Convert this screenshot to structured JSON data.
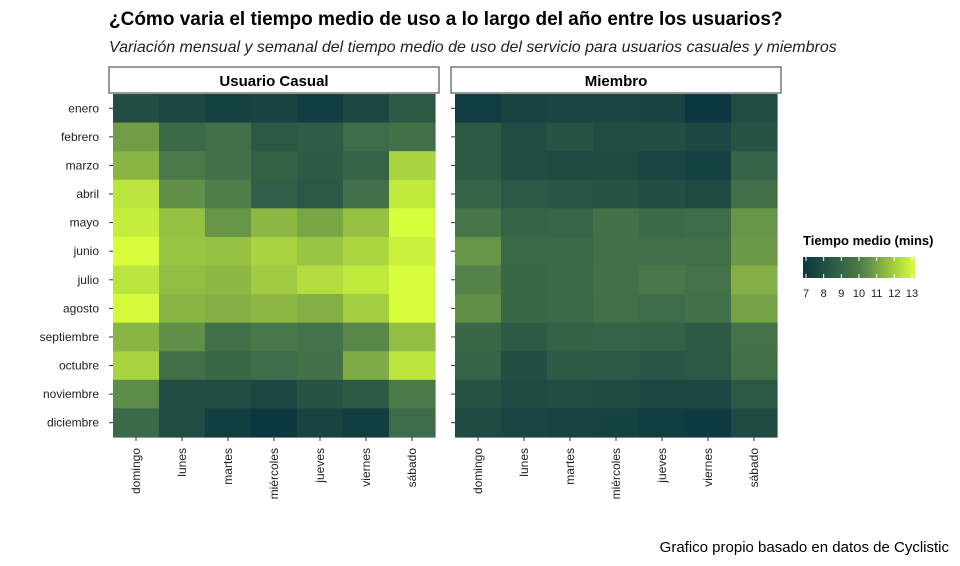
{
  "title": "¿Cómo varia el tiempo medio de uso a lo largo del año entre los usuarios?",
  "subtitle": "Variación mensual y semanal del tiempo medio de uso del servicio para usuarios casuales y miembros",
  "caption": "Grafico propio basado en datos de Cyclistic",
  "colors": {
    "low": "#0b3540",
    "mid": "#4a7a4a",
    "high": "#d8ff3c"
  },
  "chart_data": {
    "type": "heatmap",
    "facets": [
      "Usuario Casual",
      "Miembro"
    ],
    "x": [
      "domingo",
      "lunes",
      "martes",
      "miércoles",
      "jueves",
      "viernes",
      "sábado"
    ],
    "y": [
      "enero",
      "febrero",
      "marzo",
      "abril",
      "mayo",
      "junio",
      "julio",
      "agosto",
      "septiembre",
      "octubre",
      "noviembre",
      "diciembre"
    ],
    "legend": {
      "title": "Tiempo medio (mins)",
      "ticks": [
        7,
        8,
        9,
        10,
        11,
        12,
        13
      ],
      "range": [
        7,
        13
      ],
      "placement": "right"
    },
    "values": {
      "Usuario Casual": [
        [
          8.1,
          7.8,
          7.5,
          7.6,
          7.4,
          7.8,
          8.6
        ],
        [
          10.8,
          9.3,
          9.5,
          8.5,
          8.7,
          9.4,
          9.6
        ],
        [
          11.3,
          10.0,
          9.6,
          8.9,
          8.6,
          9.0,
          12.0
        ],
        [
          12.4,
          10.5,
          10.1,
          8.8,
          8.5,
          9.6,
          12.5
        ],
        [
          12.6,
          11.6,
          10.6,
          11.4,
          11.0,
          11.6,
          13.2
        ],
        [
          13.0,
          11.7,
          11.6,
          12.0,
          11.7,
          12.1,
          12.7
        ],
        [
          12.4,
          11.5,
          11.4,
          11.8,
          12.2,
          12.5,
          13.5
        ],
        [
          12.9,
          11.3,
          11.2,
          11.4,
          11.2,
          11.9,
          13.0
        ],
        [
          11.3,
          10.5,
          9.5,
          9.9,
          9.7,
          10.3,
          11.5
        ],
        [
          12.0,
          9.5,
          9.2,
          9.4,
          9.6,
          11.1,
          12.4
        ],
        [
          10.4,
          8.0,
          8.0,
          7.8,
          8.3,
          8.6,
          10.0
        ],
        [
          9.3,
          8.0,
          7.4,
          7.1,
          7.6,
          7.4,
          9.4
        ]
      ],
      "Miembro": [
        [
          7.3,
          7.6,
          7.7,
          7.7,
          7.6,
          7.1,
          8.0
        ],
        [
          8.6,
          8.0,
          8.3,
          8.0,
          8.1,
          7.8,
          8.3
        ],
        [
          8.6,
          8.0,
          7.9,
          7.9,
          7.7,
          7.5,
          9.0
        ],
        [
          9.0,
          8.5,
          8.4,
          8.3,
          8.1,
          7.9,
          9.5
        ],
        [
          9.8,
          9.0,
          9.1,
          9.6,
          9.3,
          9.4,
          10.6
        ],
        [
          10.6,
          9.3,
          9.3,
          9.5,
          9.5,
          9.5,
          10.7
        ],
        [
          10.2,
          9.2,
          9.3,
          9.6,
          9.9,
          9.7,
          11.2
        ],
        [
          10.5,
          9.2,
          9.3,
          9.5,
          9.4,
          9.6,
          10.9
        ],
        [
          9.2,
          8.6,
          8.9,
          9.0,
          8.9,
          8.6,
          9.7
        ],
        [
          9.0,
          8.1,
          8.6,
          8.5,
          8.4,
          8.5,
          9.5
        ],
        [
          8.3,
          7.9,
          8.0,
          7.9,
          7.8,
          7.8,
          8.5
        ],
        [
          7.9,
          7.7,
          7.6,
          7.5,
          7.3,
          7.2,
          7.9
        ]
      ]
    }
  }
}
